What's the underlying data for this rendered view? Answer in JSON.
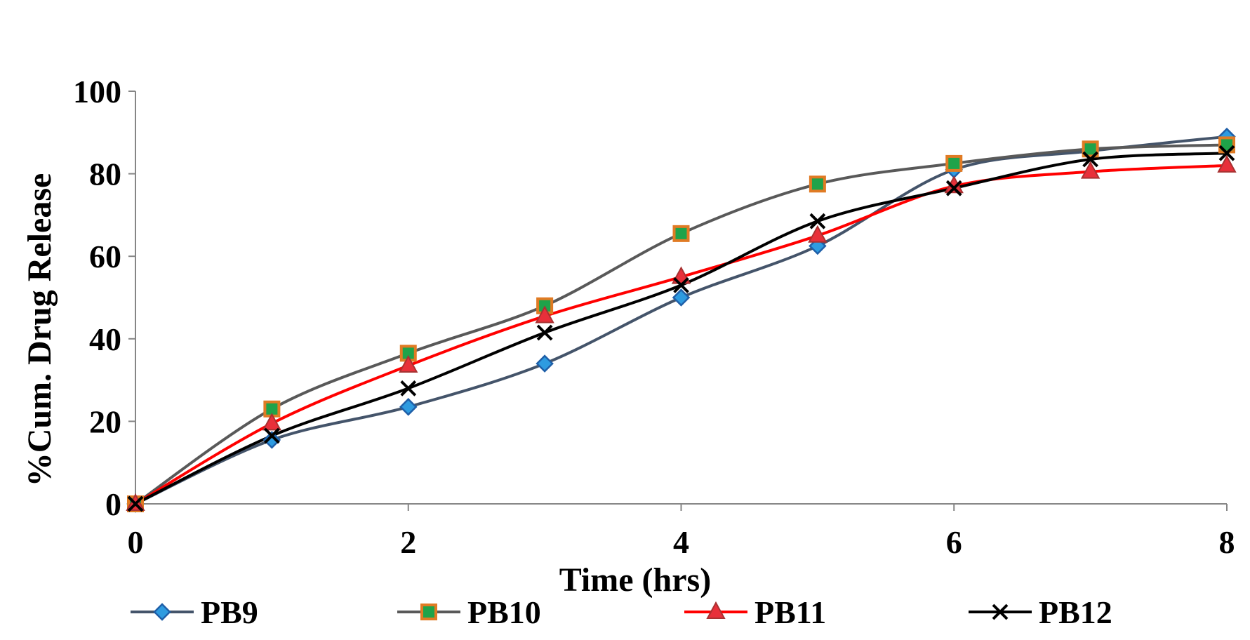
{
  "chart_data": {
    "type": "line",
    "title": "",
    "xlabel": "Time (hrs)",
    "ylabel": "%Cum. Drug Release",
    "xlim": [
      0,
      8
    ],
    "ylim": [
      0,
      100
    ],
    "x_ticks": [
      "0",
      "2",
      "4",
      "6",
      "8"
    ],
    "y_ticks": [
      "0",
      "20",
      "40",
      "60",
      "80",
      "100"
    ],
    "grid": false,
    "legend_position": "bottom",
    "x": [
      0,
      1,
      2,
      3,
      4,
      5,
      6,
      7,
      8
    ],
    "series": [
      {
        "name": "PB9",
        "values": [
          0,
          15.5,
          23.5,
          34,
          50,
          62.5,
          81,
          85.5,
          89
        ],
        "line_color": "#44546A",
        "marker": "diamond",
        "marker_fill": "#2E9BE0",
        "marker_stroke": "#1F5FA8"
      },
      {
        "name": "PB10",
        "values": [
          0,
          23,
          36.5,
          48,
          65.5,
          77.5,
          82.5,
          86,
          87
        ],
        "line_color": "#595959",
        "marker": "square",
        "marker_fill": "#1FA34A",
        "marker_stroke": "#E07B24"
      },
      {
        "name": "PB11",
        "values": [
          0,
          19.5,
          33.5,
          45.5,
          55,
          65,
          77,
          80.5,
          82
        ],
        "line_color": "#FF0000",
        "marker": "triangle",
        "marker_fill": "#E8303A",
        "marker_stroke": "#A83232"
      },
      {
        "name": "PB12",
        "values": [
          0,
          16.5,
          28,
          41.5,
          53,
          68.5,
          76.5,
          83.5,
          85
        ],
        "line_color": "#000000",
        "marker": "x",
        "marker_fill": "none",
        "marker_stroke": "#000000"
      }
    ]
  }
}
